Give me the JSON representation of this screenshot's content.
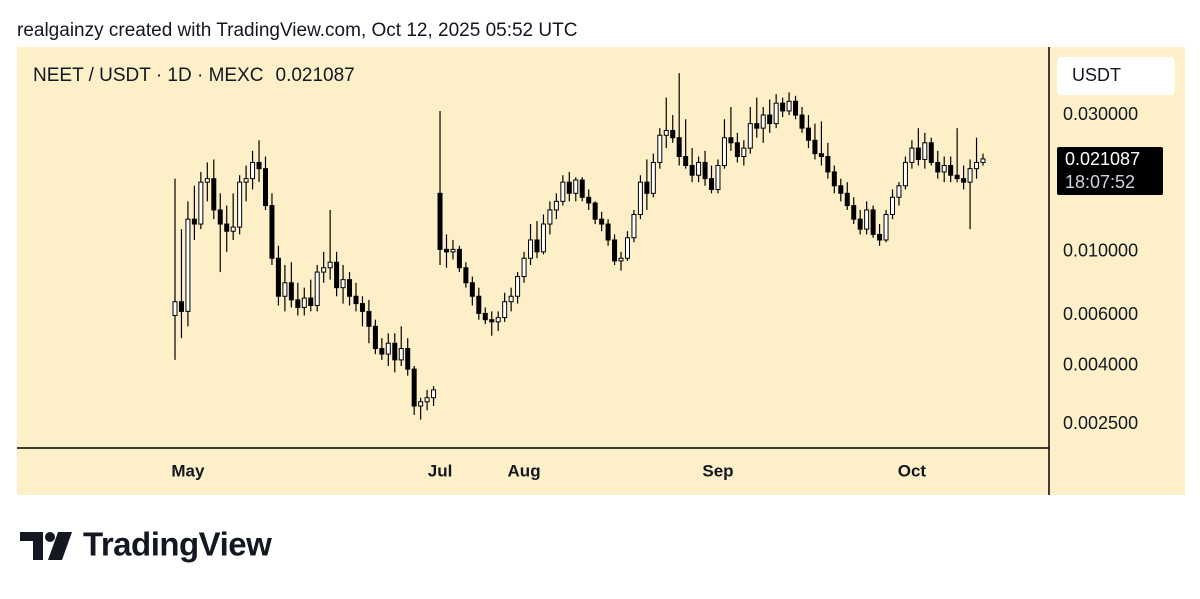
{
  "attribution": "realgainzy created with TradingView.com, Oct 12, 2025 05:52 UTC",
  "logo": "TradingView",
  "chart_data": {
    "type": "candlestick",
    "title": "NEET / USDT · 1D · MEXC",
    "y_axis_label": "USDT",
    "countdown": "18:07:52",
    "log_scale": true,
    "grid": false,
    "up_color": "#ffffff",
    "down_color": "#000000",
    "border_color": "#000000",
    "background": "#fdf0c8",
    "ylim": [
      0.00207,
      0.0518
    ],
    "yticks": [
      {
        "value": 0.03,
        "label": "0.030000"
      },
      {
        "value": 0.01,
        "label": "0.010000"
      },
      {
        "value": 0.006,
        "label": "0.006000"
      },
      {
        "value": 0.004,
        "label": "0.004000"
      },
      {
        "value": 0.0025,
        "label": "0.002500"
      }
    ],
    "categories": [
      null,
      null,
      "May",
      null,
      null,
      null,
      null,
      null,
      null,
      null,
      null,
      null,
      null,
      null,
      null,
      null,
      null,
      null,
      null,
      null,
      null,
      null,
      null,
      null,
      null,
      null,
      null,
      null,
      null,
      null,
      null,
      null,
      null,
      null,
      null,
      null,
      null,
      null,
      null,
      null,
      null,
      "Jul",
      null,
      null,
      null,
      null,
      null,
      null,
      null,
      null,
      null,
      null,
      null,
      null,
      "Aug",
      null,
      null,
      null,
      null,
      null,
      null,
      null,
      null,
      null,
      null,
      null,
      null,
      null,
      null,
      null,
      null,
      null,
      null,
      null,
      null,
      null,
      null,
      null,
      null,
      null,
      null,
      null,
      null,
      null,
      "Sep",
      null,
      null,
      null,
      null,
      null,
      null,
      null,
      null,
      null,
      null,
      null,
      null,
      null,
      null,
      null,
      null,
      null,
      null,
      null,
      null,
      null,
      null,
      null,
      null,
      null,
      null,
      null,
      null,
      null,
      "Oct",
      null,
      null,
      null,
      null,
      null,
      null,
      null,
      null,
      null,
      null,
      null
    ],
    "open": [
      0.006,
      0.0067,
      0.0062,
      0.013,
      0.0125,
      0.0175,
      0.018,
      0.014,
      0.0125,
      0.0118,
      0.0122,
      0.0175,
      0.018,
      0.0205,
      0.0195,
      0.0145,
      0.0095,
      0.007,
      0.0078,
      0.0068,
      0.0064,
      0.0069,
      0.0065,
      0.0085,
      0.0088,
      0.0092,
      0.0075,
      0.008,
      0.007,
      0.0066,
      0.0062,
      0.0055,
      0.0046,
      0.0044,
      0.0048,
      0.0042,
      0.0046,
      0.0039,
      0.0029,
      0.003,
      0.0031,
      0.016,
      0.0102,
      0.01,
      0.0102,
      0.0088,
      0.0078,
      0.007,
      0.0061,
      0.0058,
      0.0057,
      0.0059,
      0.0067,
      0.007,
      0.0082,
      0.0095,
      0.011,
      0.01,
      0.0125,
      0.014,
      0.015,
      0.0175,
      0.016,
      0.0178,
      0.0155,
      0.0148,
      0.013,
      0.0125,
      0.011,
      0.0093,
      0.0095,
      0.0112,
      0.0135,
      0.0175,
      0.016,
      0.0205,
      0.0255,
      0.0265,
      0.025,
      0.0215,
      0.02,
      0.0185,
      0.0205,
      0.018,
      0.0165,
      0.02,
      0.025,
      0.024,
      0.0215,
      0.023,
      0.028,
      0.027,
      0.03,
      0.028,
      0.033,
      0.031,
      0.0335,
      0.03,
      0.027,
      0.0245,
      0.022,
      0.0215,
      0.019,
      0.017,
      0.016,
      0.0145,
      0.013,
      0.012,
      0.014,
      0.0115,
      0.011,
      0.0135,
      0.0155,
      0.017,
      0.0205,
      0.023,
      0.021,
      0.024,
      0.0205,
      0.019,
      0.02,
      0.0185,
      0.018,
      0.0175,
      0.0195,
      0.0205
    ],
    "high": [
      0.018,
      0.012,
      0.015,
      0.017,
      0.019,
      0.0205,
      0.021,
      0.016,
      0.0145,
      0.016,
      0.0185,
      0.02,
      0.0225,
      0.0245,
      0.0215,
      0.016,
      0.0105,
      0.009,
      0.0092,
      0.0078,
      0.0075,
      0.008,
      0.009,
      0.01,
      0.014,
      0.01,
      0.009,
      0.0085,
      0.0078,
      0.007,
      0.0068,
      0.0058,
      0.005,
      0.0052,
      0.0052,
      0.0055,
      0.005,
      0.004,
      0.0031,
      0.0033,
      0.0034,
      0.031,
      0.0115,
      0.011,
      0.0105,
      0.0092,
      0.0082,
      0.0075,
      0.0064,
      0.0062,
      0.0062,
      0.0072,
      0.0075,
      0.0085,
      0.01,
      0.0125,
      0.0128,
      0.0135,
      0.015,
      0.016,
      0.0185,
      0.019,
      0.0182,
      0.0182,
      0.0165,
      0.015,
      0.0138,
      0.013,
      0.0115,
      0.01,
      0.0118,
      0.014,
      0.0185,
      0.021,
      0.022,
      0.027,
      0.0345,
      0.03,
      0.042,
      0.029,
      0.023,
      0.0215,
      0.0225,
      0.02,
      0.021,
      0.029,
      0.032,
      0.026,
      0.0245,
      0.032,
      0.0345,
      0.032,
      0.034,
      0.0355,
      0.0345,
      0.036,
      0.035,
      0.032,
      0.03,
      0.028,
      0.0285,
      0.024,
      0.02,
      0.018,
      0.0175,
      0.0155,
      0.014,
      0.015,
      0.0145,
      0.0125,
      0.014,
      0.0165,
      0.0175,
      0.0215,
      0.0245,
      0.027,
      0.026,
      0.025,
      0.0225,
      0.0215,
      0.0215,
      0.027,
      0.02,
      0.021,
      0.025,
      0.022
    ],
    "low": [
      0.0042,
      0.005,
      0.0055,
      0.011,
      0.012,
      0.015,
      0.013,
      0.0085,
      0.01,
      0.011,
      0.0115,
      0.015,
      0.0165,
      0.0175,
      0.014,
      0.009,
      0.0065,
      0.0062,
      0.0064,
      0.006,
      0.006,
      0.0062,
      0.0062,
      0.0078,
      0.008,
      0.007,
      0.0066,
      0.0065,
      0.0062,
      0.0055,
      0.0048,
      0.0044,
      0.0042,
      0.004,
      0.0038,
      0.004,
      0.0037,
      0.0027,
      0.0026,
      0.0028,
      0.0029,
      0.009,
      0.0088,
      0.0094,
      0.0085,
      0.0075,
      0.0065,
      0.0058,
      0.0056,
      0.0051,
      0.0053,
      0.0057,
      0.0062,
      0.0066,
      0.0078,
      0.009,
      0.0095,
      0.0098,
      0.0115,
      0.013,
      0.0145,
      0.015,
      0.015,
      0.015,
      0.014,
      0.0125,
      0.0118,
      0.0105,
      0.009,
      0.0086,
      0.0093,
      0.0108,
      0.013,
      0.014,
      0.0155,
      0.0195,
      0.023,
      0.024,
      0.02,
      0.0195,
      0.0175,
      0.0175,
      0.017,
      0.016,
      0.016,
      0.0195,
      0.0225,
      0.0205,
      0.02,
      0.022,
      0.025,
      0.024,
      0.026,
      0.027,
      0.0295,
      0.03,
      0.029,
      0.026,
      0.023,
      0.021,
      0.02,
      0.018,
      0.016,
      0.015,
      0.014,
      0.0125,
      0.0115,
      0.0115,
      0.0112,
      0.0105,
      0.0108,
      0.013,
      0.0145,
      0.0165,
      0.0195,
      0.02,
      0.0195,
      0.02,
      0.018,
      0.0175,
      0.0175,
      0.0175,
      0.0165,
      0.012,
      0.018,
      0.02
    ],
    "close": [
      0.0067,
      0.0062,
      0.013,
      0.0125,
      0.0175,
      0.018,
      0.014,
      0.0125,
      0.0118,
      0.0122,
      0.0175,
      0.018,
      0.0205,
      0.0195,
      0.0145,
      0.0095,
      0.007,
      0.0078,
      0.0068,
      0.0064,
      0.0069,
      0.0065,
      0.0085,
      0.0088,
      0.0092,
      0.0075,
      0.008,
      0.007,
      0.0066,
      0.0062,
      0.0055,
      0.0046,
      0.0044,
      0.0048,
      0.0042,
      0.0046,
      0.0039,
      0.0029,
      0.003,
      0.0031,
      0.0033,
      0.0102,
      0.01,
      0.0102,
      0.0088,
      0.0078,
      0.007,
      0.0061,
      0.0058,
      0.0057,
      0.0059,
      0.0067,
      0.007,
      0.0082,
      0.0095,
      0.011,
      0.01,
      0.0125,
      0.014,
      0.015,
      0.0175,
      0.016,
      0.0178,
      0.0155,
      0.0148,
      0.013,
      0.0125,
      0.011,
      0.0093,
      0.0095,
      0.0112,
      0.0135,
      0.0175,
      0.016,
      0.0205,
      0.0255,
      0.0265,
      0.025,
      0.0215,
      0.02,
      0.0185,
      0.0205,
      0.018,
      0.0165,
      0.02,
      0.025,
      0.024,
      0.0215,
      0.023,
      0.028,
      0.027,
      0.03,
      0.028,
      0.033,
      0.031,
      0.0335,
      0.03,
      0.027,
      0.0245,
      0.022,
      0.0215,
      0.019,
      0.017,
      0.016,
      0.0145,
      0.013,
      0.012,
      0.014,
      0.0115,
      0.011,
      0.0135,
      0.0155,
      0.017,
      0.0205,
      0.023,
      0.021,
      0.024,
      0.0205,
      0.019,
      0.02,
      0.0185,
      0.018,
      0.0175,
      0.0195,
      0.0205,
      0.021087
    ]
  }
}
